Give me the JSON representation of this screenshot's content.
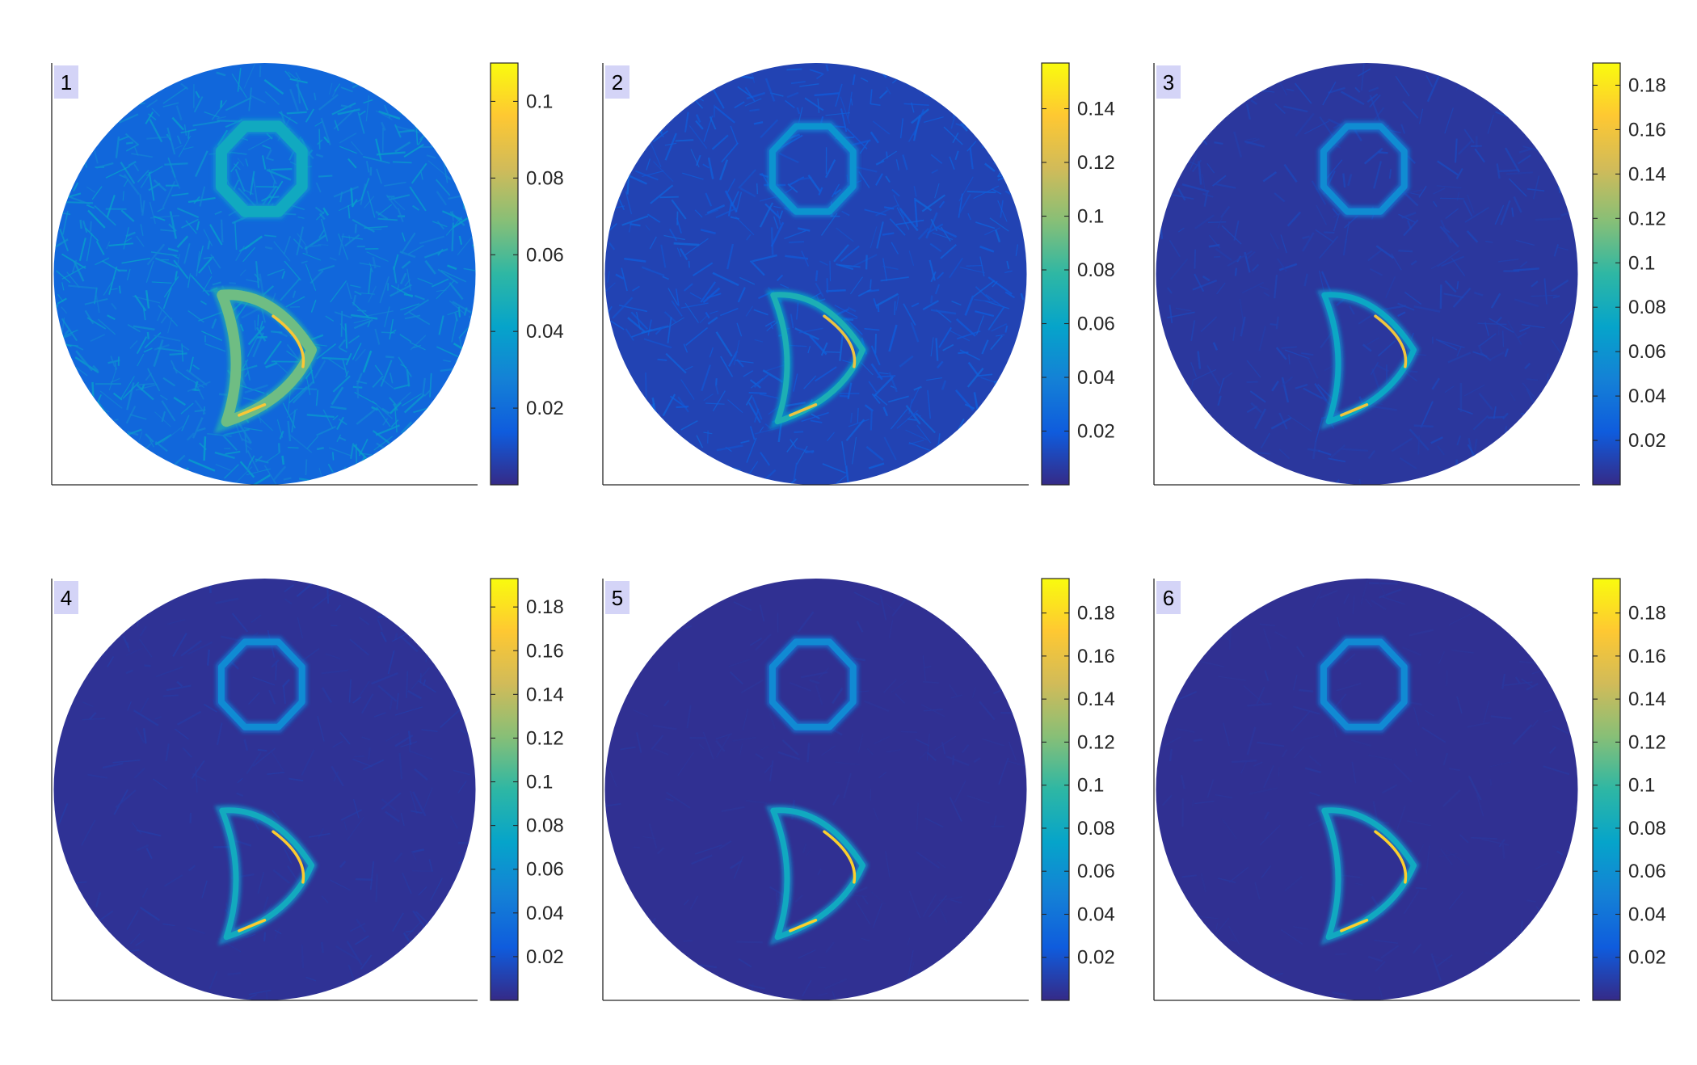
{
  "figure": {
    "background": "#ffffff",
    "axis_color": "#262626",
    "field_color": "#3e26a8",
    "label_box_color": "#d4d4f7"
  },
  "colormap": {
    "name": "parula",
    "stops": [
      "#352a87",
      "#0f5cdd",
      "#1481d6",
      "#06a4ca",
      "#2eb7a4",
      "#87bf77",
      "#d1bb59",
      "#fec832",
      "#f9fb0e"
    ]
  },
  "chart_data": [
    {
      "type": "heatmap",
      "panel_label": "1",
      "clim": [
        0.0,
        0.11
      ],
      "colorbar_ticks": [
        0.02,
        0.04,
        0.06,
        0.08,
        0.1
      ],
      "colorbar_ticklabels": [
        "0.02",
        "0.04",
        "0.06",
        "0.08",
        "0.1"
      ],
      "background_level": 0.018,
      "noise_level": 0.012,
      "ring_level": 0.045,
      "crescent_level": 0.065,
      "crescent_peak": 0.095
    },
    {
      "type": "heatmap",
      "panel_label": "2",
      "clim": [
        0.0,
        0.157
      ],
      "colorbar_ticks": [
        0.02,
        0.04,
        0.06,
        0.08,
        0.1,
        0.12,
        0.14
      ],
      "colorbar_ticklabels": [
        "0.02",
        "0.04",
        "0.06",
        "0.08",
        "0.1",
        "0.12",
        "0.14"
      ],
      "background_level": 0.01,
      "noise_level": 0.008,
      "ring_level": 0.05,
      "crescent_level": 0.07,
      "crescent_peak": 0.13
    },
    {
      "type": "heatmap",
      "panel_label": "3",
      "clim": [
        0.0,
        0.19
      ],
      "colorbar_ticks": [
        0.02,
        0.04,
        0.06,
        0.08,
        0.1,
        0.12,
        0.14,
        0.16,
        0.18
      ],
      "colorbar_ticklabels": [
        "0.02",
        "0.04",
        "0.06",
        "0.08",
        "0.1",
        "0.12",
        "0.14",
        "0.16",
        "0.18"
      ],
      "background_level": 0.006,
      "noise_level": 0.005,
      "ring_level": 0.055,
      "crescent_level": 0.075,
      "crescent_peak": 0.16
    },
    {
      "type": "heatmap",
      "panel_label": "4",
      "clim": [
        0.0,
        0.193
      ],
      "colorbar_ticks": [
        0.02,
        0.04,
        0.06,
        0.08,
        0.1,
        0.12,
        0.14,
        0.16,
        0.18
      ],
      "colorbar_ticklabels": [
        "0.02",
        "0.04",
        "0.06",
        "0.08",
        "0.1",
        "0.12",
        "0.14",
        "0.16",
        "0.18"
      ],
      "background_level": 0.004,
      "noise_level": 0.003,
      "ring_level": 0.055,
      "crescent_level": 0.08,
      "crescent_peak": 0.17
    },
    {
      "type": "heatmap",
      "panel_label": "5",
      "clim": [
        0.0,
        0.196
      ],
      "colorbar_ticks": [
        0.02,
        0.04,
        0.06,
        0.08,
        0.1,
        0.12,
        0.14,
        0.16,
        0.18
      ],
      "colorbar_ticklabels": [
        "0.02",
        "0.04",
        "0.06",
        "0.08",
        "0.1",
        "0.12",
        "0.14",
        "0.16",
        "0.18"
      ],
      "background_level": 0.003,
      "noise_level": 0.002,
      "ring_level": 0.055,
      "crescent_level": 0.08,
      "crescent_peak": 0.175
    },
    {
      "type": "heatmap",
      "panel_label": "6",
      "clim": [
        0.0,
        0.196
      ],
      "colorbar_ticks": [
        0.02,
        0.04,
        0.06,
        0.08,
        0.1,
        0.12,
        0.14,
        0.16,
        0.18
      ],
      "colorbar_ticklabels": [
        "0.02",
        "0.04",
        "0.06",
        "0.08",
        "0.1",
        "0.12",
        "0.14",
        "0.16",
        "0.18"
      ],
      "background_level": 0.003,
      "noise_level": 0.002,
      "ring_level": 0.055,
      "crescent_level": 0.08,
      "crescent_peak": 0.175
    }
  ]
}
